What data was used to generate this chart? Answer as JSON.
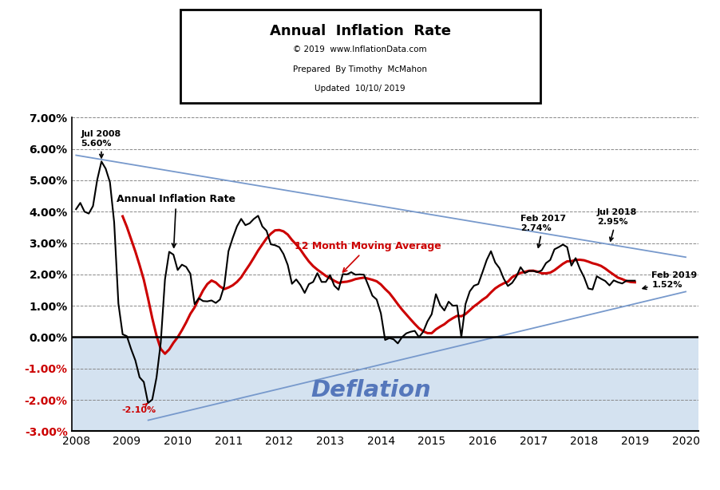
{
  "title": "Annual  Inflation  Rate",
  "subtitle1": "© 2019  www.InflationData.com",
  "subtitle2": "Prepared  By Timothy  McMahon",
  "subtitle3": "Updated  10/10/ 2019",
  "deflation_label": "Deflation",
  "ma_label": "12 Month Moving Average",
  "air_label": "Annual Inflation Rate",
  "ylim": [
    -3.0,
    7.0
  ],
  "xlim": [
    2007.92,
    2020.25
  ],
  "yticks": [
    -3.0,
    -2.0,
    -1.0,
    0.0,
    1.0,
    2.0,
    3.0,
    4.0,
    5.0,
    6.0,
    7.0
  ],
  "xticks": [
    2008,
    2009,
    2010,
    2011,
    2012,
    2013,
    2014,
    2015,
    2016,
    2017,
    2018,
    2019,
    2020
  ],
  "trend_line1": [
    2008.0,
    5.8,
    2020.0,
    2.55
  ],
  "trend_line2": [
    2009.42,
    -2.65,
    2020.0,
    1.45
  ],
  "inflation_data": [
    4.08,
    4.28,
    4.0,
    3.94,
    4.18,
    5.02,
    5.6,
    5.37,
    4.94,
    3.66,
    1.07,
    0.09,
    0.03,
    -0.38,
    -0.74,
    -1.28,
    -1.43,
    -2.1,
    -1.99,
    -1.29,
    -0.18,
    1.84,
    2.72,
    2.63,
    2.14,
    2.31,
    2.24,
    2.02,
    1.05,
    1.24,
    1.15,
    1.14,
    1.17,
    1.09,
    1.2,
    1.63,
    2.74,
    3.16,
    3.53,
    3.77,
    3.57,
    3.63,
    3.77,
    3.87,
    3.53,
    3.39,
    2.96,
    2.93,
    2.87,
    2.65,
    2.3,
    1.7,
    1.84,
    1.66,
    1.41,
    1.69,
    1.76,
    2.04,
    1.76,
    1.76,
    1.98,
    1.64,
    1.51,
    2.01,
    2.0,
    2.07,
    1.99,
    2.0,
    1.99,
    1.66,
    1.32,
    1.2,
    0.76,
    -0.09,
    -0.03,
    -0.07,
    -0.2,
    0.0,
    0.12,
    0.17,
    0.2,
    0.0,
    0.17,
    0.5,
    0.73,
    1.37,
    1.02,
    0.85,
    1.13,
    1.0,
    1.01,
    0.0,
    1.06,
    1.46,
    1.64,
    1.69,
    2.07,
    2.46,
    2.74,
    2.38,
    2.2,
    1.87,
    1.63,
    1.73,
    1.93,
    2.23,
    2.04,
    2.11,
    2.11,
    2.07,
    2.13,
    2.36,
    2.46,
    2.8,
    2.87,
    2.95,
    2.87,
    2.28,
    2.52,
    2.18,
    1.91,
    1.55,
    1.52,
    1.94,
    1.86,
    1.79,
    1.65,
    1.81,
    1.75,
    1.71,
    1.8,
    1.8,
    1.8
  ],
  "line_color_black": "#000000",
  "line_color_red": "#CC0000",
  "trend_color": "#7799CC",
  "deflation_fill_color": "#D4E2F0",
  "deflation_text_color": "#5577BB",
  "neg_tick_color": "#CC0000",
  "grid_color": "#888888"
}
